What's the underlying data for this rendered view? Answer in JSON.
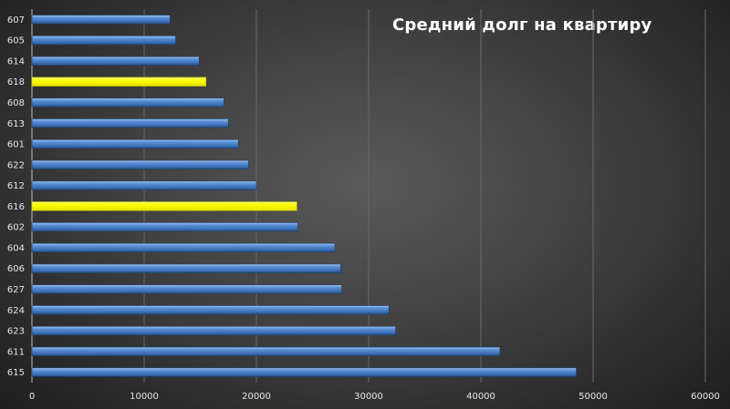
{
  "chart_data": {
    "type": "bar",
    "orientation": "horizontal",
    "title": "Средний долг на квартиру",
    "categories": [
      "607",
      "605",
      "614",
      "618",
      "608",
      "613",
      "601",
      "622",
      "612",
      "616",
      "602",
      "604",
      "606",
      "627",
      "624",
      "623",
      "611",
      "615"
    ],
    "values": [
      12300,
      12800,
      14900,
      15500,
      17100,
      17500,
      18400,
      19300,
      20000,
      23600,
      23700,
      27000,
      27500,
      27600,
      31800,
      32400,
      41700,
      48500
    ],
    "highlighted": [
      "618",
      "616"
    ],
    "xlim": [
      0,
      60000
    ],
    "x_ticks": [
      0,
      10000,
      20000,
      30000,
      40000,
      50000,
      60000
    ],
    "x_tick_labels": [
      "0",
      "10000",
      "20000",
      "30000",
      "40000",
      "50000",
      "60000"
    ],
    "grid": "vertical",
    "legend": "none",
    "colors": {
      "bar": "#4f81bd",
      "highlight": "#ffff00",
      "text": "#ffffff",
      "grid": "#6a6a6a"
    }
  }
}
